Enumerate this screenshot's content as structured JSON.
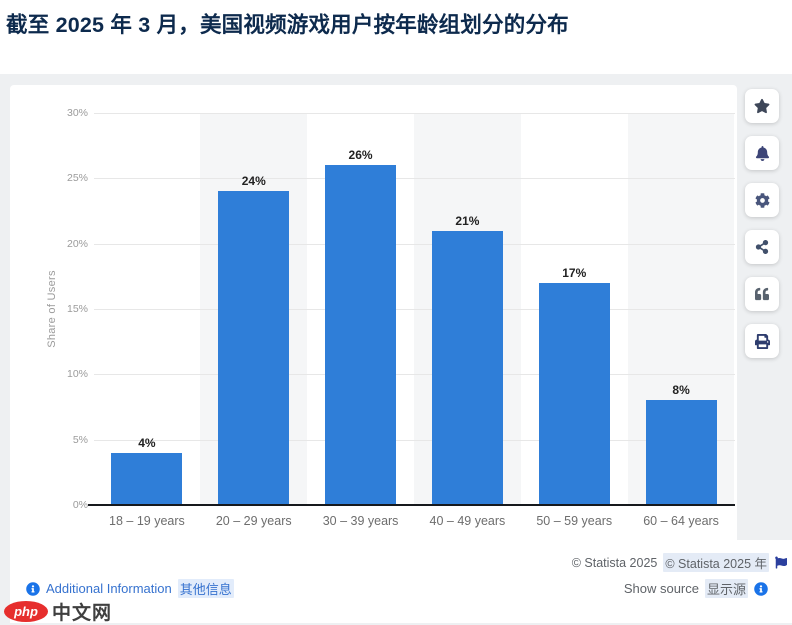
{
  "page": {
    "title": "截至 2025 年 3 月，美国视频游戏用户按年龄组划分的分布"
  },
  "chart_data": {
    "type": "bar",
    "title": "截至 2025 年 3 月，美国视频游戏用户按年龄组划分的分布",
    "categories": [
      "18 – 19 years",
      "20 – 29 years",
      "30 – 39 years",
      "40 – 49 years",
      "50 – 59 years",
      "60 – 64 years"
    ],
    "values": [
      4,
      24,
      26,
      21,
      17,
      8
    ],
    "value_labels": [
      "4%",
      "24%",
      "26%",
      "21%",
      "17%",
      "8%"
    ],
    "xlabel": "",
    "ylabel": "Share of Users",
    "ylim": [
      0,
      30
    ],
    "yticks": [
      0,
      5,
      10,
      15,
      20,
      25,
      30
    ],
    "ytick_labels": [
      "0%",
      "5%",
      "10%",
      "15%",
      "20%",
      "25%",
      "30%"
    ],
    "grid": true,
    "legend": false,
    "bar_color": "#2f7ed8",
    "plot_band_color": "#f5f6f7"
  },
  "toolbar": {
    "buttons": [
      {
        "id": "favorite",
        "icon": "star-icon",
        "color": "#3e4759"
      },
      {
        "id": "notification",
        "icon": "bell-icon",
        "color": "#3d4577"
      },
      {
        "id": "settings",
        "icon": "gear-icon",
        "color": "#49567c"
      },
      {
        "id": "share",
        "icon": "share-icon",
        "color": "#41506b"
      },
      {
        "id": "citation",
        "icon": "quote-icon",
        "color": "#59636f"
      },
      {
        "id": "print",
        "icon": "print-icon",
        "color": "#2e3d6e"
      }
    ]
  },
  "footer": {
    "copyright_en": "© Statista 2025",
    "copyright_zh": "© Statista 2025 年",
    "show_source_label": "Show source",
    "show_source_zh": "显示源",
    "additional_info_label": "Additional Information",
    "additional_info_zh": "其他信息"
  },
  "watermark": {
    "logo": "php",
    "site": "中文网"
  },
  "colors": {
    "title": "#0d2a4d",
    "bar": "#2f7ed8",
    "link": "#3672cf",
    "copyright_text": "#5f6368",
    "page_bg": "#eef0f2",
    "highlight_bg": "#e4ebf6",
    "flag": "#2b3f9e",
    "info": "#1a73e8"
  }
}
